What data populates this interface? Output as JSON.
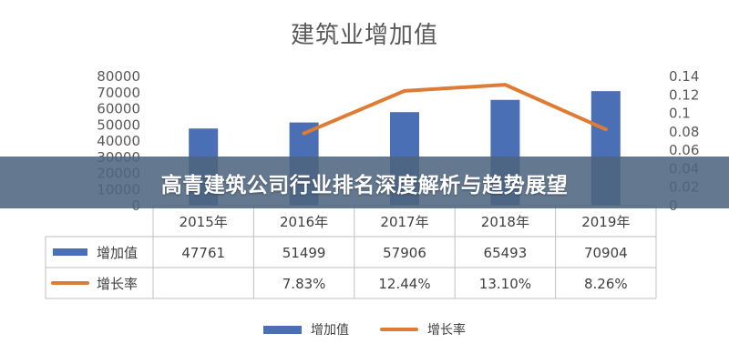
{
  "banner": {
    "text": "高青建筑公司行业排名深度解析与趋势展望"
  },
  "chart_data": {
    "type": "bar",
    "title": "建筑业增加值",
    "categories": [
      "2015年",
      "2016年",
      "2017年",
      "2018年",
      "2019年"
    ],
    "series": [
      {
        "name": "增加值",
        "type": "bar",
        "axis": "left",
        "values": [
          47761,
          51499,
          57906,
          65493,
          70904
        ],
        "labels": [
          "47761",
          "51499",
          "57906",
          "65493",
          "70904"
        ]
      },
      {
        "name": "增长率",
        "type": "line",
        "axis": "right",
        "values": [
          null,
          0.0783,
          0.1244,
          0.131,
          0.0826
        ],
        "labels": [
          "",
          "7.83%",
          "12.44%",
          "13.10%",
          "8.26%"
        ]
      }
    ],
    "ylim": [
      0,
      80000
    ],
    "y_ticks": [
      "0",
      "10000",
      "20000",
      "30000",
      "40000",
      "50000",
      "60000",
      "70000",
      "80000"
    ],
    "y2lim": [
      0,
      0.14
    ],
    "y2_ticks": [
      "0",
      "0.02",
      "0.04",
      "0.06",
      "0.08",
      "0.1",
      "0.12",
      "0.14"
    ],
    "legend": "bottom",
    "grid": false,
    "data_table": true,
    "colors": {
      "bar": "#4a6fb5",
      "line": "#e07b34"
    }
  }
}
